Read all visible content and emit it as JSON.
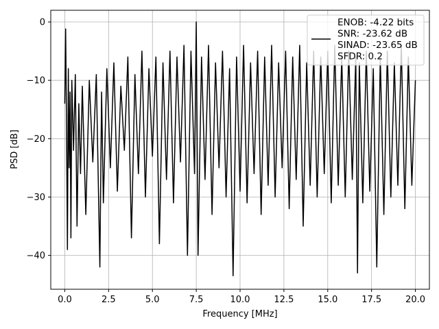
{
  "chart_data": {
    "type": "line",
    "title": "",
    "xlabel": "Frequency [MHz]",
    "ylabel": "PSD [dB]",
    "xlim": [
      -0.8,
      20.8
    ],
    "ylim": [
      -45.8,
      2.0
    ],
    "x_ticks": [
      0.0,
      2.5,
      5.0,
      7.5,
      10.0,
      12.5,
      15.0,
      17.5,
      20.0
    ],
    "x_tick_labels": [
      "0.0",
      "2.5",
      "5.0",
      "7.5",
      "10.0",
      "12.5",
      "15.0",
      "17.5",
      "20.0"
    ],
    "y_ticks": [
      0,
      -10,
      -20,
      -30,
      -40
    ],
    "y_tick_labels": [
      "0",
      "−10",
      "−20",
      "−30",
      "−40"
    ],
    "grid": true,
    "legend_position": "top-right",
    "series": [
      {
        "name": "ENOB: -4.22 bits\nSNR: -23.62 dB\nSINAD: -23.65 dB\nSFDR: 0.2",
        "color": "#000000",
        "x": [
          0.0,
          0.05,
          0.1,
          0.15,
          0.2,
          0.25,
          0.3,
          0.35,
          0.4,
          0.5,
          0.6,
          0.7,
          0.8,
          0.9,
          1.0,
          1.2,
          1.4,
          1.6,
          1.8,
          2.0,
          2.1,
          2.2,
          2.4,
          2.6,
          2.8,
          3.0,
          3.2,
          3.4,
          3.6,
          3.8,
          4.0,
          4.2,
          4.4,
          4.6,
          4.8,
          5.0,
          5.2,
          5.4,
          5.6,
          5.8,
          6.0,
          6.2,
          6.4,
          6.6,
          6.8,
          7.0,
          7.2,
          7.4,
          7.5,
          7.6,
          7.8,
          8.0,
          8.2,
          8.4,
          8.6,
          8.8,
          9.0,
          9.2,
          9.4,
          9.6,
          9.8,
          10.0,
          10.2,
          10.4,
          10.6,
          10.8,
          11.0,
          11.2,
          11.4,
          11.6,
          11.8,
          12.0,
          12.2,
          12.4,
          12.6,
          12.8,
          13.0,
          13.2,
          13.4,
          13.6,
          13.8,
          14.0,
          14.2,
          14.4,
          14.6,
          14.8,
          15.0,
          15.2,
          15.4,
          15.6,
          15.8,
          16.0,
          16.2,
          16.4,
          16.6,
          16.7,
          16.8,
          17.0,
          17.2,
          17.4,
          17.6,
          17.8,
          18.0,
          18.2,
          18.4,
          18.6,
          18.8,
          19.0,
          19.2,
          19.4,
          19.6,
          19.8,
          20.0
        ],
        "y": [
          -14.0,
          -1.2,
          -18.0,
          -39.0,
          -8.0,
          -25.0,
          -12.0,
          -37.0,
          -10.0,
          -22.0,
          -9.0,
          -35.0,
          -14.0,
          -26.0,
          -11.0,
          -33.0,
          -10.0,
          -24.0,
          -9.0,
          -42.0,
          -12.0,
          -31.0,
          -8.0,
          -25.0,
          -7.0,
          -29.0,
          -11.0,
          -22.0,
          -6.0,
          -37.0,
          -9.0,
          -26.0,
          -5.0,
          -30.0,
          -8.0,
          -23.0,
          -6.0,
          -38.0,
          -7.0,
          -27.0,
          -5.0,
          -31.0,
          -6.0,
          -24.0,
          -4.0,
          -40.0,
          -5.0,
          -26.0,
          0.0,
          -40.0,
          -6.0,
          -27.0,
          -4.0,
          -33.0,
          -7.0,
          -25.0,
          -5.0,
          -30.0,
          -8.0,
          -43.5,
          -6.0,
          -29.0,
          -4.0,
          -31.0,
          -7.0,
          -26.0,
          -5.0,
          -33.0,
          -6.0,
          -28.0,
          -4.0,
          -30.0,
          -7.0,
          -25.0,
          -5.0,
          -32.0,
          -6.0,
          -27.0,
          -4.0,
          -35.0,
          -7.0,
          -28.0,
          -5.0,
          -30.0,
          -6.0,
          -26.0,
          -5.0,
          -31.0,
          -4.0,
          -28.0,
          -6.0,
          -30.0,
          -5.0,
          -27.0,
          -6.0,
          -43.0,
          -7.0,
          -31.0,
          -5.0,
          -29.0,
          -8.0,
          -42.0,
          -6.0,
          -33.0,
          -5.0,
          -30.0,
          -7.0,
          -28.0,
          -4.0,
          -32.0,
          -6.0,
          -28.0,
          -10.0
        ]
      }
    ]
  }
}
